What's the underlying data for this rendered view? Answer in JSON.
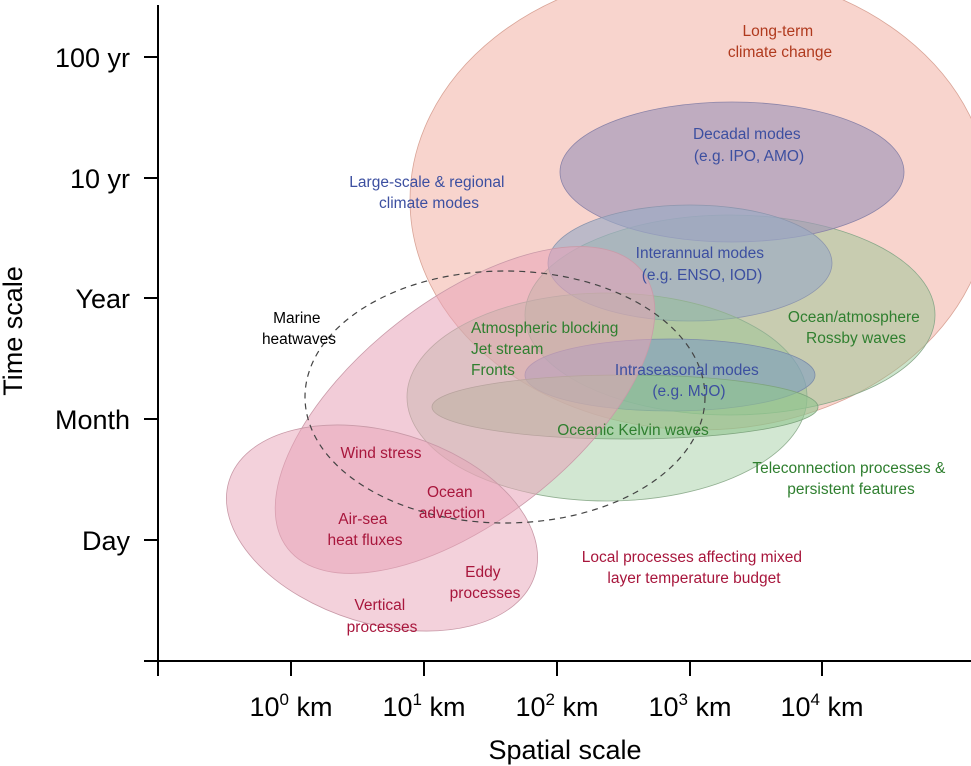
{
  "axes": {
    "x_title": "Spatial scale",
    "y_title": "Time scale",
    "y_ticks": [
      "100 yr",
      "10 yr",
      "Year",
      "Month",
      "Day"
    ],
    "x_ticks": [
      {
        "mantissa": "10",
        "exponent": "0",
        "unit": " km"
      },
      {
        "mantissa": "10",
        "exponent": "1",
        "unit": " km"
      },
      {
        "mantissa": "10",
        "exponent": "2",
        "unit": " km"
      },
      {
        "mantissa": "10",
        "exponent": "3",
        "unit": " km"
      },
      {
        "mantissa": "10",
        "exponent": "4",
        "unit": " km"
      }
    ]
  },
  "colors": {
    "climate_fill": "#f4b8ac",
    "decadal_fill": "#9f97b8",
    "interannual_fill": "#9aaac4",
    "green_fill": "#8fc48e",
    "intraseasonal_fill": "#7f9cbf",
    "local_fill": "#e8a3b8",
    "climate_text": "#b03a1e",
    "mode_text": "#3c4fa0",
    "green_text": "#2f7f2f",
    "local_text": "#a8163c",
    "heatwave_text": "#000000"
  },
  "regions": {
    "long_term": [
      "Long-term",
      "climate change"
    ],
    "decadal": [
      "Decadal modes",
      "(e.g. IPO, AMO)"
    ],
    "large_scale": [
      "Large-scale & regional",
      "climate modes"
    ],
    "interannual": [
      "Interannual modes",
      "(e.g. ENSO, IOD)"
    ],
    "rossby": [
      "Ocean/atmosphere",
      "Rossby waves"
    ],
    "blocking": [
      "Atmospheric blocking",
      "Jet stream",
      "Fronts"
    ],
    "intraseasonal": [
      "Intraseasonal modes",
      "(e.g. MJO)"
    ],
    "kelvin": [
      "Oceanic Kelvin waves"
    ],
    "teleconnection": [
      "Teleconnection processes &",
      "persistent features"
    ],
    "marine_heatwaves": [
      "Marine",
      "heatwaves"
    ],
    "wind_stress": [
      "Wind stress"
    ],
    "ocean_advection": [
      "Ocean",
      "advection"
    ],
    "air_sea": [
      "Air-sea",
      "heat fluxes"
    ],
    "eddy": [
      "Eddy",
      "processes"
    ],
    "vertical": [
      "Vertical",
      "processes"
    ],
    "local": [
      "Local processes affecting mixed",
      "layer temperature budget"
    ]
  }
}
